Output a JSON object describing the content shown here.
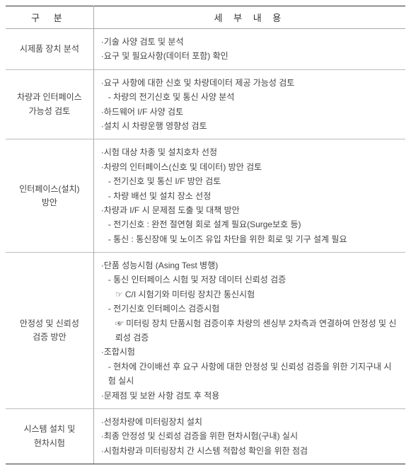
{
  "colors": {
    "border_strong": "#333333",
    "border_light": "#aaaaaa",
    "text": "#444444",
    "background": "#ffffff"
  },
  "typography": {
    "header_fontsize": 13,
    "cell_fontsize": 12,
    "font_family": "Malgun Gothic"
  },
  "layout": {
    "col_widths": [
      "22%",
      "78%"
    ],
    "row_count": 5
  },
  "table": {
    "header": {
      "left": "구    분",
      "right": "세  부  내  용"
    },
    "rows": [
      {
        "category": "시제품 장치 분석",
        "lines": [
          {
            "text": "·기술 사양 검토 및 분석",
            "indent": 0
          },
          {
            "text": "·요구 및 필요사항(데이터 포함) 확인",
            "indent": 0
          }
        ]
      },
      {
        "category": "차량과 인터페이스 가능성 검토",
        "lines": [
          {
            "text": "·요구 사항에 대한 신호 및 차량데이터 제공 가능성 검토",
            "indent": 0
          },
          {
            "text": "- 차량의 전기신호 및 통신 사양 분석",
            "indent": 1
          },
          {
            "text": "·하드웨어 I/F 사양 검토",
            "indent": 0
          },
          {
            "text": "·설치 시 차량운행 영향성 검토",
            "indent": 0
          }
        ]
      },
      {
        "category": "인터페이스(설치) 방안",
        "lines": [
          {
            "text": "·시험 대상 차종 및 설치호차 선정",
            "indent": 0
          },
          {
            "text": "·차량의 인터페이스(신호 및 데이터) 방안 검토",
            "indent": 0
          },
          {
            "text": "- 전기신호 및 통신 I/F 방안 검토",
            "indent": 1
          },
          {
            "text": "- 차량 배선 및 설치 장소 선정",
            "indent": 1
          },
          {
            "text": "·차량과 I/F 시 문제점 도출 및 대책 방안",
            "indent": 0
          },
          {
            "text": "- 전기신호 : 완전 절연형 회로 설계 필요(Surge보호 등)",
            "indent": 1
          },
          {
            "text": "- 통신 : 통신장애 및 노이즈 유입 차단을 위한 회로 및 기구 설계 필요",
            "indent": 1
          }
        ]
      },
      {
        "category": "안정성 및 신뢰성 검증 방안",
        "lines": [
          {
            "text": "·단품 성능시험 (Asing Test 병행)",
            "indent": 0
          },
          {
            "text": "- 통신 인터페이스 시험 및 저장 데이터 신뢰성 검증",
            "indent": 1
          },
          {
            "text": "☞ C/I 시험기와 미터링 장치간 통신시험",
            "indent": 2
          },
          {
            "text": "- 전기신호 인터페이스 검증시험",
            "indent": 1
          },
          {
            "text": "☞ 미터링 장치 단품시험 검증이후 차량의 센싱부 2차측과 연결하여 안정성 및 신뢰성 검증",
            "indent": 2
          },
          {
            "text": "·조합시험",
            "indent": 0
          },
          {
            "text": "- 현차에 간이배선 후 요구 사항에 대한 안정성 및 신뢰성 검증을 위한 기지구내 시험 실시",
            "indent": 1
          },
          {
            "text": "·문제점 및 보완 사항 검토 후 적용",
            "indent": 0
          }
        ]
      },
      {
        "category": "시스템 설치 및 현차시험",
        "lines": [
          {
            "text": "·선정차량에 미터링장치 설치",
            "indent": 0
          },
          {
            "text": "·최종 안정성 및 신뢰성 검증을 위한 현차시험(구내) 실시",
            "indent": 0
          },
          {
            "text": "·시험차량과 미터링장치 간 시스템 적합성 확인을 위한 점검",
            "indent": 0
          }
        ]
      }
    ]
  }
}
